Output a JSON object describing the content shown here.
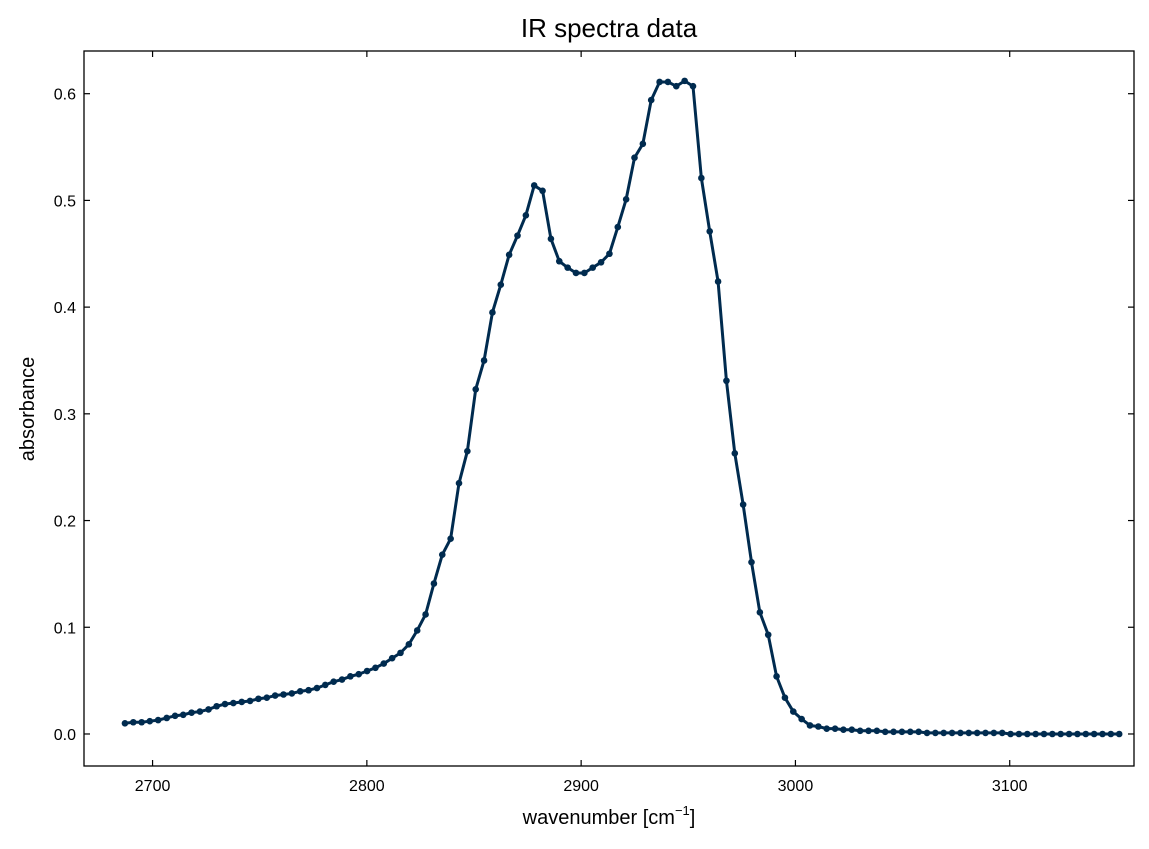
{
  "chart_data": {
    "type": "line",
    "title": "IR spectra data",
    "xlabel_main": "wavenumber [cm",
    "xlabel_sup": "−1",
    "xlabel_close": "]",
    "ylabel": "absorbance",
    "xlim": [
      2668,
      3158
    ],
    "ylim": [
      -0.03,
      0.64
    ],
    "xticks": [
      2700,
      2800,
      2900,
      3000,
      3100
    ],
    "yticks": [
      0.0,
      0.1,
      0.2,
      0.3,
      0.4,
      0.5,
      0.6
    ],
    "ytick_labels": [
      "0.0",
      "0.1",
      "0.2",
      "0.3",
      "0.4",
      "0.5",
      "0.6"
    ],
    "series": [
      {
        "color": "#002b4f",
        "marker": "circle",
        "x": [
          2687.1,
          2691.0,
          2694.9,
          2698.7,
          2702.6,
          2706.6,
          2710.5,
          2714.3,
          2718.2,
          2722.1,
          2726.1,
          2729.9,
          2733.8,
          2737.7,
          2741.6,
          2745.5,
          2749.4,
          2753.3,
          2757.2,
          2761.1,
          2765.0,
          2768.9,
          2772.8,
          2776.7,
          2780.6,
          2784.5,
          2788.4,
          2792.3,
          2796.2,
          2800.1,
          2804.0,
          2807.9,
          2811.8,
          2815.7,
          2819.6,
          2823.5,
          2827.4,
          2831.3,
          2835.2,
          2839.1,
          2843.0,
          2846.9,
          2850.8,
          2854.7,
          2858.6,
          2862.5,
          2866.4,
          2870.3,
          2874.2,
          2878.1,
          2882.0,
          2885.9,
          2889.8,
          2893.7,
          2897.6,
          2901.5,
          2905.4,
          2909.3,
          2913.2,
          2917.1,
          2921.0,
          2924.9,
          2928.8,
          2932.7,
          2936.6,
          2940.5,
          2944.4,
          2948.3,
          2952.2,
          2956.1,
          2960.0,
          2963.9,
          2967.8,
          2971.7,
          2975.6,
          2979.5,
          2983.4,
          2987.3,
          2991.2,
          2995.1,
          2999.0,
          3002.9,
          3006.8,
          3010.7,
          3014.6,
          3018.5,
          3022.4,
          3026.3,
          3030.2,
          3034.1,
          3038.0,
          3041.9,
          3045.8,
          3049.7,
          3053.6,
          3057.5,
          3061.4,
          3065.3,
          3069.2,
          3073.1,
          3077.0,
          3080.9,
          3084.8,
          3088.7,
          3092.6,
          3096.5,
          3100.4,
          3104.3,
          3108.2,
          3112.1,
          3116.0,
          3119.9,
          3123.8,
          3127.7,
          3131.6,
          3135.5,
          3139.4,
          3143.3,
          3147.2,
          3151.1
        ],
        "y": [
          0.01,
          0.011,
          0.011,
          0.012,
          0.013,
          0.015,
          0.017,
          0.018,
          0.02,
          0.021,
          0.023,
          0.026,
          0.028,
          0.029,
          0.03,
          0.031,
          0.033,
          0.034,
          0.036,
          0.037,
          0.038,
          0.04,
          0.041,
          0.043,
          0.046,
          0.049,
          0.051,
          0.054,
          0.056,
          0.059,
          0.062,
          0.066,
          0.071,
          0.076,
          0.084,
          0.097,
          0.112,
          0.141,
          0.168,
          0.183,
          0.235,
          0.265,
          0.323,
          0.35,
          0.395,
          0.421,
          0.449,
          0.467,
          0.486,
          0.514,
          0.509,
          0.464,
          0.443,
          0.437,
          0.432,
          0.432,
          0.437,
          0.442,
          0.45,
          0.475,
          0.501,
          0.54,
          0.553,
          0.594,
          0.611,
          0.611,
          0.607,
          0.612,
          0.607,
          0.521,
          0.471,
          0.424,
          0.331,
          0.263,
          0.215,
          0.161,
          0.114,
          0.093,
          0.054,
          0.034,
          0.021,
          0.014,
          0.008,
          0.007,
          0.005,
          0.005,
          0.004,
          0.004,
          0.003,
          0.003,
          0.003,
          0.002,
          0.002,
          0.002,
          0.002,
          0.002,
          0.001,
          0.001,
          0.001,
          0.001,
          0.001,
          0.001,
          0.001,
          0.001,
          0.001,
          0.001,
          0.0,
          0.0,
          0.0,
          0.0,
          0.0,
          0.0,
          0.0,
          0.0,
          0.0,
          0.0,
          0.0,
          0.0,
          0.0,
          0.0
        ]
      }
    ],
    "grid": false
  }
}
